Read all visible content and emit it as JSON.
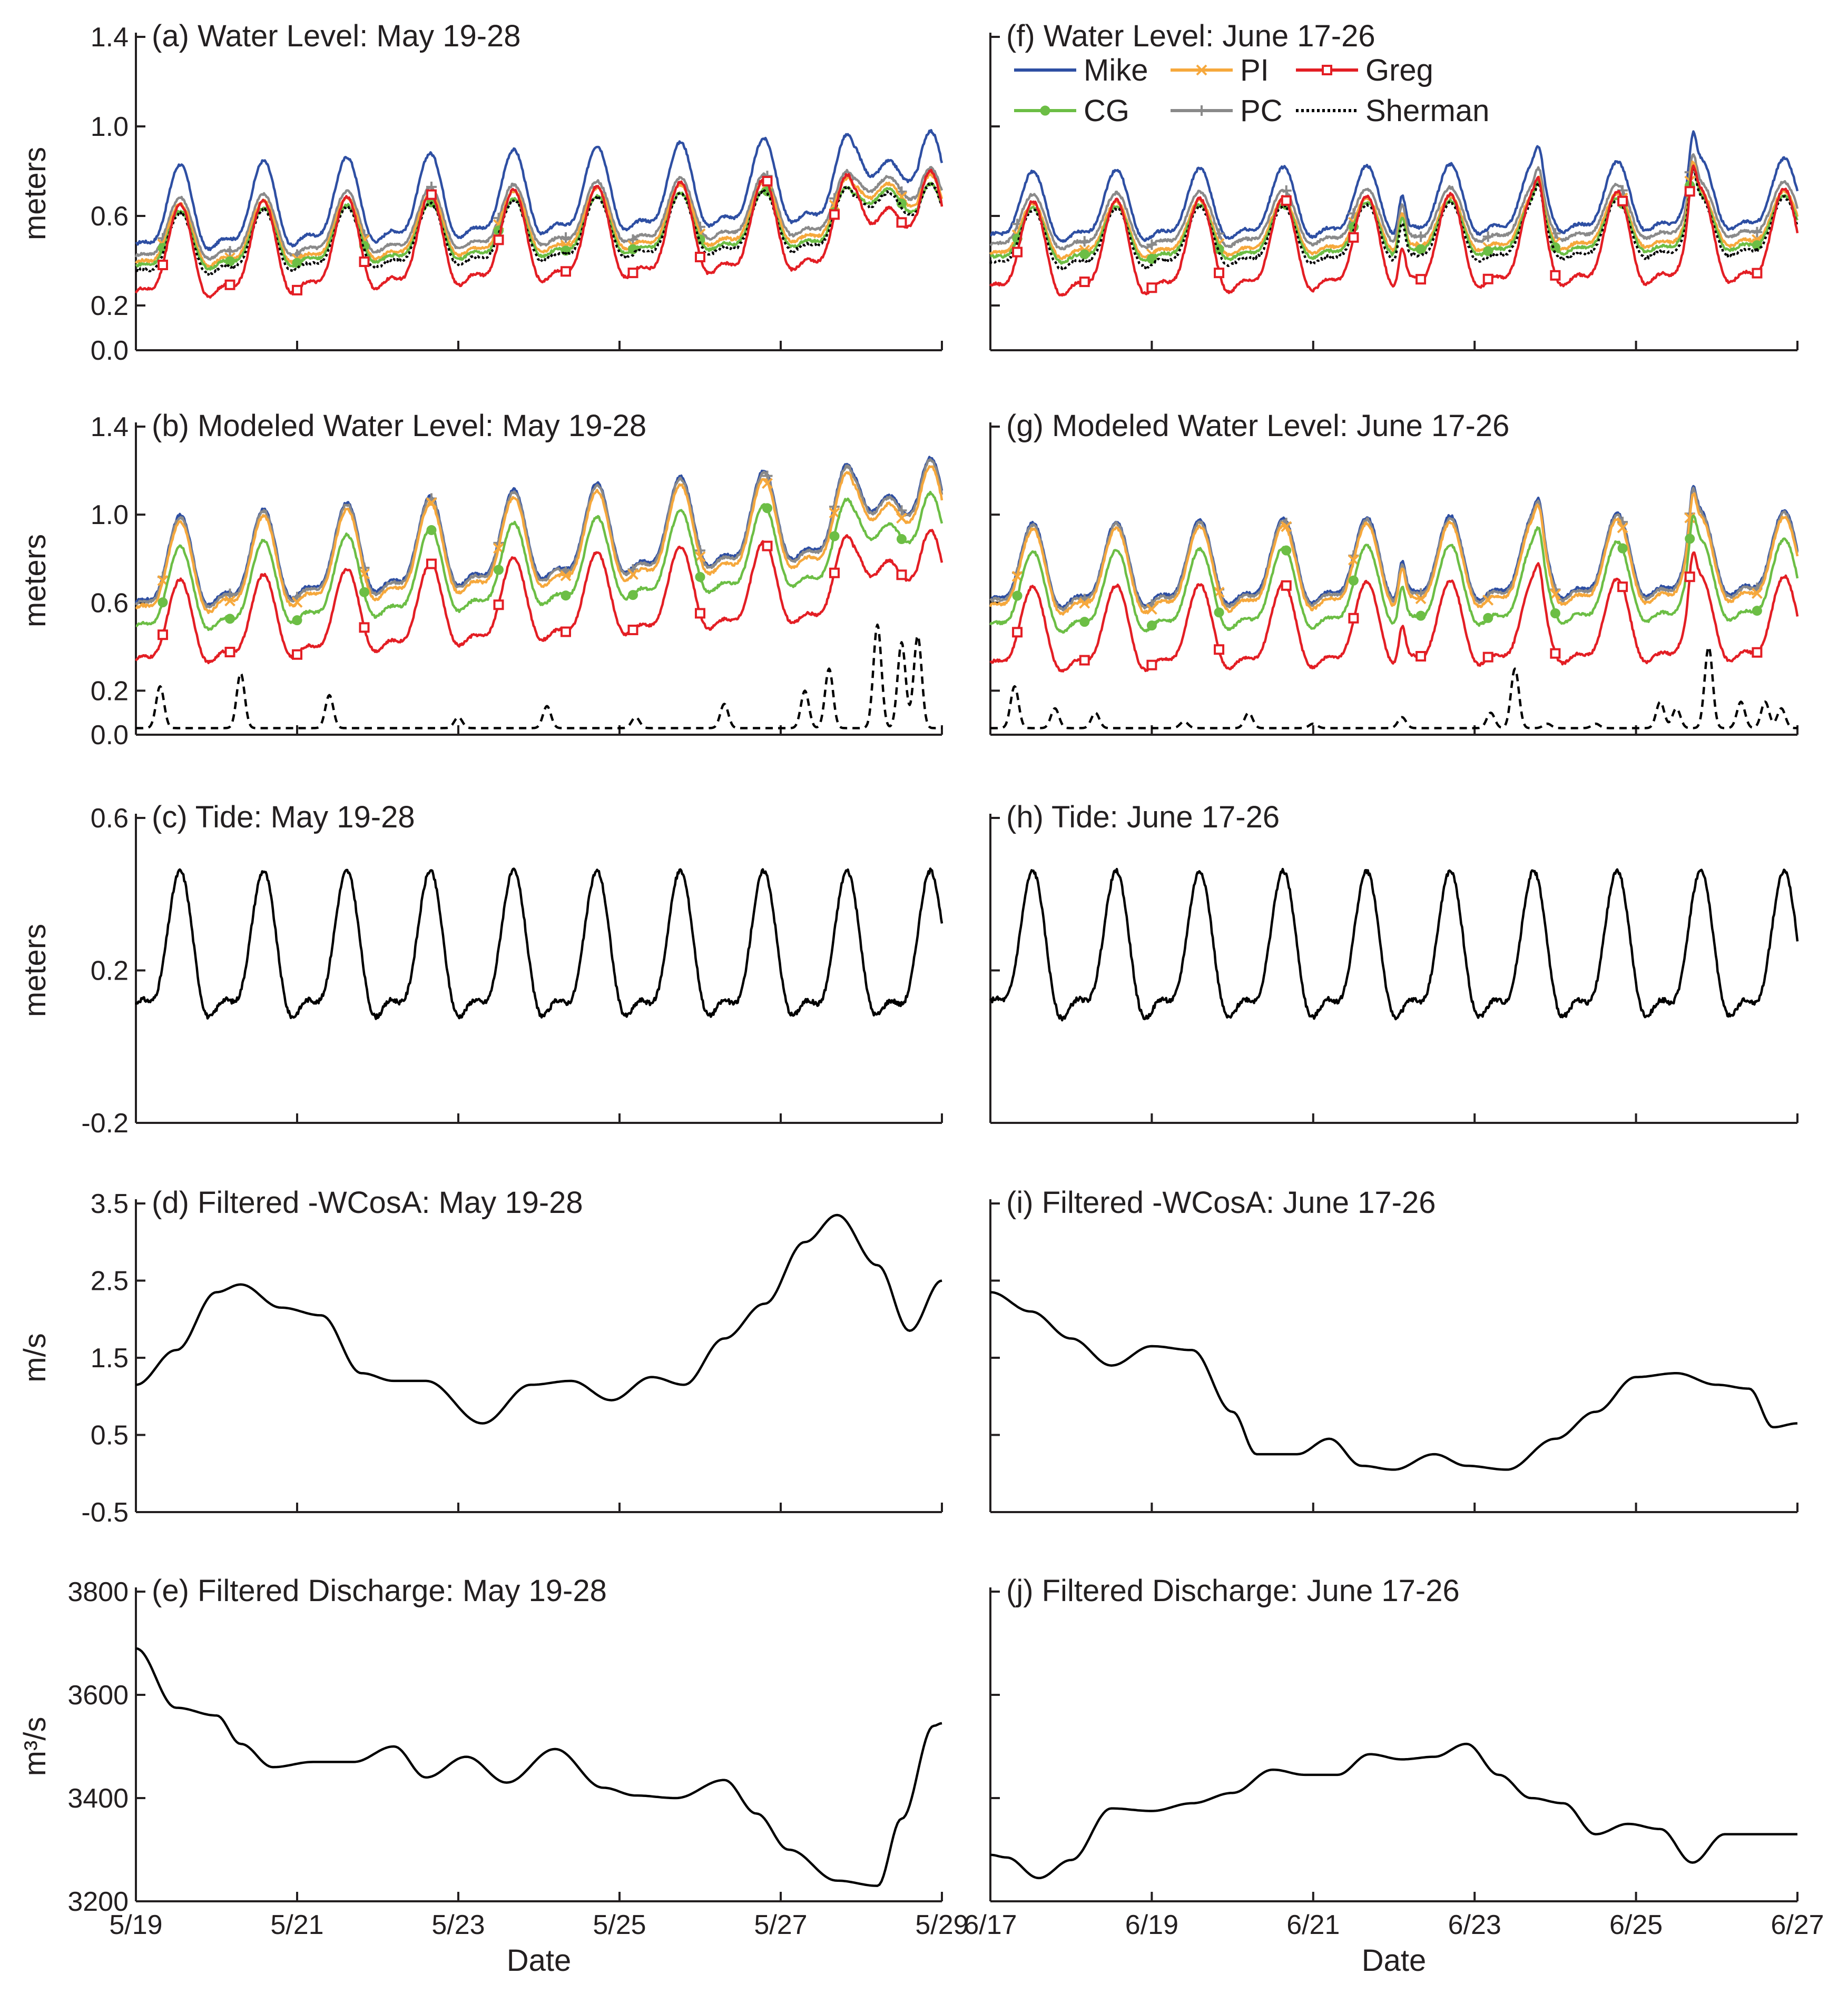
{
  "figure": {
    "x_axis_label": "Date",
    "left_column_x_ticks": [
      "5/19",
      "5/21",
      "5/23",
      "5/25",
      "5/27",
      "5/29"
    ],
    "right_column_x_ticks": [
      "6/17",
      "6/19",
      "6/21",
      "6/23",
      "6/25",
      "6/27"
    ]
  },
  "colors": {
    "Mike": "#2e4fa3",
    "PI": "#f6a83c",
    "Greg": "#e31e24",
    "CG": "#6cbe45",
    "PC": "#8a8a8a",
    "Sherman": "#000000",
    "axis": "#231f20"
  },
  "legend": {
    "items": [
      {
        "name": "Mike",
        "marker": "none",
        "dash": "solid"
      },
      {
        "name": "PI",
        "marker": "x",
        "dash": "solid"
      },
      {
        "name": "Greg",
        "marker": "square",
        "dash": "solid"
      },
      {
        "name": "CG",
        "marker": "circle",
        "dash": "solid"
      },
      {
        "name": "PC",
        "marker": "plus",
        "dash": "solid"
      },
      {
        "name": "Sherman",
        "marker": "none",
        "dash": "dotted"
      }
    ]
  },
  "chart_data": [
    {
      "id": "a",
      "type": "line",
      "title": "(a) Water Level: May 19-28",
      "ylabel": "meters",
      "xlabel": "Date",
      "x_range": [
        "5/19",
        "5/29"
      ],
      "ylim": [
        0.0,
        1.4
      ],
      "y_ticks": [
        0.0,
        0.2,
        0.6,
        1.0,
        1.4
      ],
      "y_tick_labels": [
        "0.0",
        "0.2",
        "0.6",
        "1.0",
        "1.4"
      ],
      "series": [
        {
          "name": "Mike",
          "base": 0.58,
          "amp": 0.22,
          "trend": 0.16
        },
        {
          "name": "PC",
          "base": 0.5,
          "amp": 0.16,
          "trend": 0.14
        },
        {
          "name": "PI",
          "base": 0.47,
          "amp": 0.16,
          "trend": 0.14
        },
        {
          "name": "CG",
          "base": 0.45,
          "amp": 0.15,
          "trend": 0.13
        },
        {
          "name": "Sherman",
          "base": 0.43,
          "amp": 0.16,
          "trend": 0.14
        },
        {
          "name": "Greg",
          "base": 0.38,
          "amp": 0.24,
          "trend": 0.16
        }
      ]
    },
    {
      "id": "b",
      "type": "line",
      "title": "(b) Modeled Water Level: May 19-28",
      "ylabel": "meters",
      "xlabel": "Date",
      "x_range": [
        "5/19",
        "5/29"
      ],
      "ylim": [
        0.0,
        1.4
      ],
      "y_ticks": [
        0.0,
        0.2,
        0.6,
        1.0,
        1.4
      ],
      "y_tick_labels": [
        "0.0",
        "0.2",
        "0.6",
        "1.0",
        "1.4"
      ],
      "series": [
        {
          "name": "Mike",
          "base": 0.72,
          "amp": 0.24,
          "trend": 0.28
        },
        {
          "name": "PC",
          "base": 0.71,
          "amp": 0.24,
          "trend": 0.28
        },
        {
          "name": "PI",
          "base": 0.69,
          "amp": 0.24,
          "trend": 0.27
        },
        {
          "name": "CG",
          "base": 0.6,
          "amp": 0.22,
          "trend": 0.26
        },
        {
          "name": "Greg",
          "base": 0.45,
          "amp": 0.22,
          "trend": 0.24
        },
        {
          "name": "Sherman",
          "baseline": 0.03,
          "spikes": [
            [
              0.3,
              0.22
            ],
            [
              1.3,
              0.28
            ],
            [
              2.4,
              0.18
            ],
            [
              4.0,
              0.08
            ],
            [
              5.1,
              0.13
            ],
            [
              6.2,
              0.08
            ],
            [
              7.3,
              0.14
            ],
            [
              8.3,
              0.2
            ],
            [
              8.6,
              0.3
            ],
            [
              9.2,
              0.5
            ],
            [
              9.5,
              0.42
            ],
            [
              9.7,
              0.45
            ]
          ]
        }
      ]
    },
    {
      "id": "c",
      "type": "line",
      "title": "(c) Tide: May 19-28",
      "ylabel": "meters",
      "xlabel": "Date",
      "x_range": [
        "5/19",
        "5/29"
      ],
      "ylim": [
        -0.2,
        0.6
      ],
      "y_ticks": [
        -0.2,
        0.2,
        0.6
      ],
      "y_tick_labels": [
        "-0.2",
        "0.2",
        "0.6"
      ],
      "series": [
        {
          "name": "Tide",
          "base": 0.22,
          "amp": 0.22
        }
      ]
    },
    {
      "id": "d",
      "type": "line",
      "title": "(d) Filtered -WCosA: May 19-28",
      "ylabel": "m/s",
      "xlabel": "Date",
      "x_range": [
        "5/19",
        "5/29"
      ],
      "ylim": [
        -0.5,
        3.5
      ],
      "y_ticks": [
        -0.5,
        0.5,
        1.5,
        2.5,
        3.5
      ],
      "y_tick_labels": [
        "-0.5",
        "0.5",
        "1.5",
        "2.5",
        "3.5"
      ],
      "series": [
        {
          "name": "-WCosA",
          "x_days": [
            0,
            0.5,
            1.0,
            1.3,
            1.8,
            2.3,
            2.8,
            3.2,
            3.6,
            4.3,
            4.9,
            5.4,
            5.9,
            6.4,
            6.8,
            7.3,
            7.8,
            8.3,
            8.7,
            9.2,
            9.6,
            10.0
          ],
          "values": [
            1.15,
            1.6,
            2.35,
            2.45,
            2.15,
            2.05,
            1.3,
            1.2,
            1.2,
            0.65,
            1.15,
            1.2,
            0.95,
            1.25,
            1.15,
            1.75,
            2.2,
            3.0,
            3.35,
            2.7,
            1.85,
            2.5
          ]
        }
      ]
    },
    {
      "id": "e",
      "type": "line",
      "title": "(e) Filtered Discharge: May 19-28",
      "ylabel": "m³/s",
      "xlabel": "Date",
      "x_range": [
        "5/19",
        "5/29"
      ],
      "ylim": [
        3200,
        3800
      ],
      "y_ticks": [
        3200,
        3400,
        3600,
        3800
      ],
      "y_tick_labels": [
        "3200",
        "3400",
        "3600",
        "3800"
      ],
      "series": [
        {
          "name": "Discharge",
          "x_days": [
            0,
            0.5,
            1.0,
            1.3,
            1.7,
            2.2,
            2.7,
            3.2,
            3.6,
            4.1,
            4.6,
            5.2,
            5.8,
            6.2,
            6.7,
            7.3,
            7.7,
            8.1,
            8.7,
            9.2,
            9.5,
            9.9,
            10.0
          ],
          "values": [
            3690,
            3575,
            3560,
            3505,
            3460,
            3470,
            3470,
            3500,
            3440,
            3480,
            3430,
            3495,
            3420,
            3405,
            3400,
            3435,
            3370,
            3300,
            3240,
            3230,
            3360,
            3540,
            3545
          ]
        }
      ]
    },
    {
      "id": "f",
      "type": "line",
      "title": "(f) Water Level: June 17-26",
      "ylabel": "meters",
      "xlabel": "Date",
      "x_range": [
        "6/17",
        "6/27"
      ],
      "ylim": [
        0.0,
        1.4
      ],
      "y_ticks": [
        0.0,
        0.2,
        0.6,
        1.0,
        1.4
      ],
      "y_tick_labels": [
        "",
        "",
        "",
        "",
        ""
      ],
      "series": [
        {
          "name": "Mike",
          "base": 0.6,
          "amp": 0.18,
          "trend": 0.06
        },
        {
          "name": "PC",
          "base": 0.54,
          "amp": 0.14,
          "trend": 0.06
        },
        {
          "name": "PI",
          "base": 0.5,
          "amp": 0.14,
          "trend": 0.06
        },
        {
          "name": "CG",
          "base": 0.48,
          "amp": 0.14,
          "trend": 0.06
        },
        {
          "name": "Sherman",
          "base": 0.46,
          "amp": 0.15,
          "trend": 0.06
        },
        {
          "name": "Greg",
          "base": 0.4,
          "amp": 0.24,
          "trend": 0.06
        }
      ]
    },
    {
      "id": "g",
      "type": "line",
      "title": "(g) Modeled Water Level: June 17-26",
      "ylabel": "meters",
      "xlabel": "Date",
      "x_range": [
        "6/17",
        "6/27"
      ],
      "ylim": [
        0.0,
        1.4
      ],
      "y_ticks": [
        0.0,
        0.2,
        0.6,
        1.0,
        1.4
      ],
      "y_tick_labels": [
        "",
        "",
        "",
        "",
        ""
      ],
      "series": [
        {
          "name": "Mike",
          "base": 0.72,
          "amp": 0.22,
          "trend": 0.06
        },
        {
          "name": "PC",
          "base": 0.71,
          "amp": 0.22,
          "trend": 0.06
        },
        {
          "name": "PI",
          "base": 0.69,
          "amp": 0.22,
          "trend": 0.06
        },
        {
          "name": "CG",
          "base": 0.6,
          "amp": 0.21,
          "trend": 0.06
        },
        {
          "name": "Greg",
          "base": 0.43,
          "amp": 0.22,
          "trend": 0.05
        },
        {
          "name": "Sherman",
          "baseline": 0.03,
          "spikes": [
            [
              0.3,
              0.22
            ],
            [
              0.8,
              0.12
            ],
            [
              1.3,
              0.1
            ],
            [
              2.4,
              0.06
            ],
            [
              3.2,
              0.1
            ],
            [
              4.0,
              0.05
            ],
            [
              5.1,
              0.08
            ],
            [
              6.2,
              0.1
            ],
            [
              6.5,
              0.3
            ],
            [
              6.9,
              0.05
            ],
            [
              7.5,
              0.05
            ],
            [
              8.3,
              0.15
            ],
            [
              8.5,
              0.12
            ],
            [
              8.9,
              0.4
            ],
            [
              9.3,
              0.15
            ],
            [
              9.6,
              0.15
            ],
            [
              9.8,
              0.12
            ]
          ]
        }
      ]
    },
    {
      "id": "h",
      "type": "line",
      "title": "(h) Tide: June 17-26",
      "ylabel": "meters",
      "xlabel": "Date",
      "x_range": [
        "6/17",
        "6/27"
      ],
      "ylim": [
        -0.2,
        0.6
      ],
      "y_ticks": [
        -0.2,
        0.2,
        0.6
      ],
      "y_tick_labels": [
        "",
        "",
        ""
      ],
      "series": [
        {
          "name": "Tide",
          "base": 0.22,
          "amp": 0.22
        }
      ]
    },
    {
      "id": "i",
      "type": "line",
      "title": "(i) Filtered -WCosA: June 17-26",
      "ylabel": "m/s",
      "xlabel": "Date",
      "x_range": [
        "6/17",
        "6/27"
      ],
      "ylim": [
        -0.5,
        3.5
      ],
      "y_ticks": [
        -0.5,
        0.5,
        1.5,
        2.5,
        3.5
      ],
      "y_tick_labels": [
        "",
        "",
        "",
        "",
        ""
      ],
      "series": [
        {
          "name": "-WCosA",
          "x_days": [
            0,
            0.5,
            1.0,
            1.5,
            2.0,
            2.5,
            3.0,
            3.3,
            3.8,
            4.2,
            4.6,
            5.0,
            5.5,
            5.9,
            6.4,
            7.0,
            7.5,
            8.0,
            8.5,
            9.0,
            9.4,
            9.7,
            10.0
          ],
          "values": [
            2.35,
            2.1,
            1.75,
            1.4,
            1.65,
            1.6,
            0.8,
            0.25,
            0.25,
            0.45,
            0.1,
            0.05,
            0.25,
            0.1,
            0.05,
            0.45,
            0.8,
            1.25,
            1.3,
            1.15,
            1.1,
            0.6,
            0.65
          ]
        }
      ]
    },
    {
      "id": "j",
      "type": "line",
      "title": "(j) Filtered Discharge: June 17-26",
      "ylabel": "m³/s",
      "xlabel": "Date",
      "x_range": [
        "6/17",
        "6/27"
      ],
      "ylim": [
        3200,
        3800
      ],
      "y_ticks": [
        3200,
        3400,
        3600,
        3800
      ],
      "y_tick_labels": [
        "",
        "",
        "",
        ""
      ],
      "series": [
        {
          "name": "Discharge",
          "x_days": [
            0,
            0.2,
            0.6,
            1.0,
            1.5,
            2.0,
            2.5,
            3.0,
            3.5,
            3.9,
            4.3,
            4.7,
            5.1,
            5.5,
            5.9,
            6.3,
            6.7,
            7.1,
            7.5,
            7.9,
            8.3,
            8.7,
            9.1,
            9.5,
            10.0
          ],
          "values": [
            3290,
            3285,
            3245,
            3280,
            3380,
            3375,
            3390,
            3410,
            3455,
            3445,
            3445,
            3485,
            3475,
            3480,
            3505,
            3445,
            3400,
            3390,
            3330,
            3350,
            3340,
            3275,
            3330,
            3330,
            3330
          ]
        }
      ]
    }
  ]
}
